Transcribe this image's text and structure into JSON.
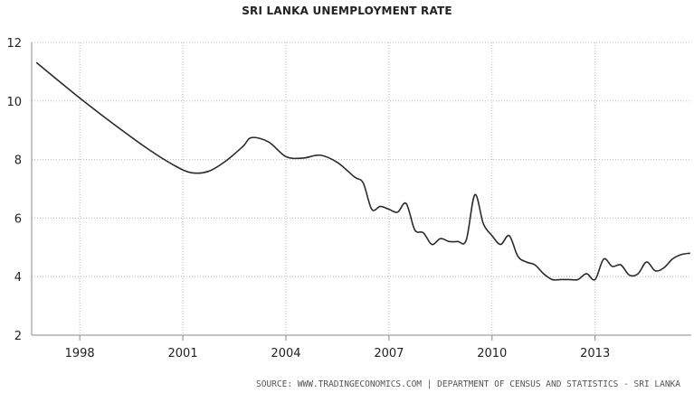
{
  "title": "SRI LANKA UNEMPLOYMENT RATE",
  "source": "SOURCE: WWW.TRADINGECONOMICS.COM | DEPARTMENT OF CENSUS AND STATISTICS - SRI LANKA",
  "colors": {
    "line": "#2b2b2b",
    "grid": "#b8b8b8",
    "axis": "#888888",
    "text": "#222222"
  },
  "chart_data": {
    "type": "line",
    "title": "SRI LANKA UNEMPLOYMENT RATE",
    "xlabel": "",
    "ylabel": "",
    "xlim": [
      1996.6,
      2015.8
    ],
    "ylim": [
      2,
      12
    ],
    "grid": true,
    "legend": "none",
    "x_ticks": [
      1998,
      2001,
      2004,
      2007,
      2010,
      2013
    ],
    "y_ticks": [
      2,
      4,
      6,
      8,
      10,
      12
    ],
    "series": [
      {
        "x": [
          1996.75,
          1998.0,
          1999.0,
          2000.0,
          2000.75,
          2001.25,
          2001.75,
          2002.25,
          2002.75,
          2003.0,
          2003.5,
          2004.0,
          2004.5,
          2005.0,
          2005.5,
          2006.0,
          2006.25,
          2006.5,
          2006.75,
          2007.0,
          2007.25,
          2007.5,
          2007.75,
          2008.0,
          2008.25,
          2008.5,
          2008.75,
          2009.0,
          2009.25,
          2009.5,
          2009.75,
          2010.0,
          2010.25,
          2010.5,
          2010.75,
          2011.0,
          2011.25,
          2011.5,
          2011.75,
          2012.0,
          2012.25,
          2012.5,
          2012.75,
          2013.0,
          2013.25,
          2013.5,
          2013.75,
          2014.0,
          2014.25,
          2014.5,
          2014.75,
          2015.0,
          2015.25,
          2015.5,
          2015.75
        ],
        "y": [
          11.3,
          10.1,
          9.2,
          8.35,
          7.8,
          7.55,
          7.6,
          7.95,
          8.45,
          8.75,
          8.6,
          8.1,
          8.05,
          8.15,
          7.9,
          7.4,
          7.2,
          6.3,
          6.4,
          6.3,
          6.2,
          6.5,
          5.6,
          5.5,
          5.1,
          5.3,
          5.2,
          5.2,
          5.25,
          6.8,
          5.8,
          5.4,
          5.1,
          5.4,
          4.7,
          4.5,
          4.4,
          4.1,
          3.9,
          3.9,
          3.9,
          3.9,
          4.1,
          3.9,
          4.6,
          4.35,
          4.4,
          4.05,
          4.1,
          4.5,
          4.2,
          4.3,
          4.6,
          4.75,
          4.8
        ]
      }
    ]
  }
}
